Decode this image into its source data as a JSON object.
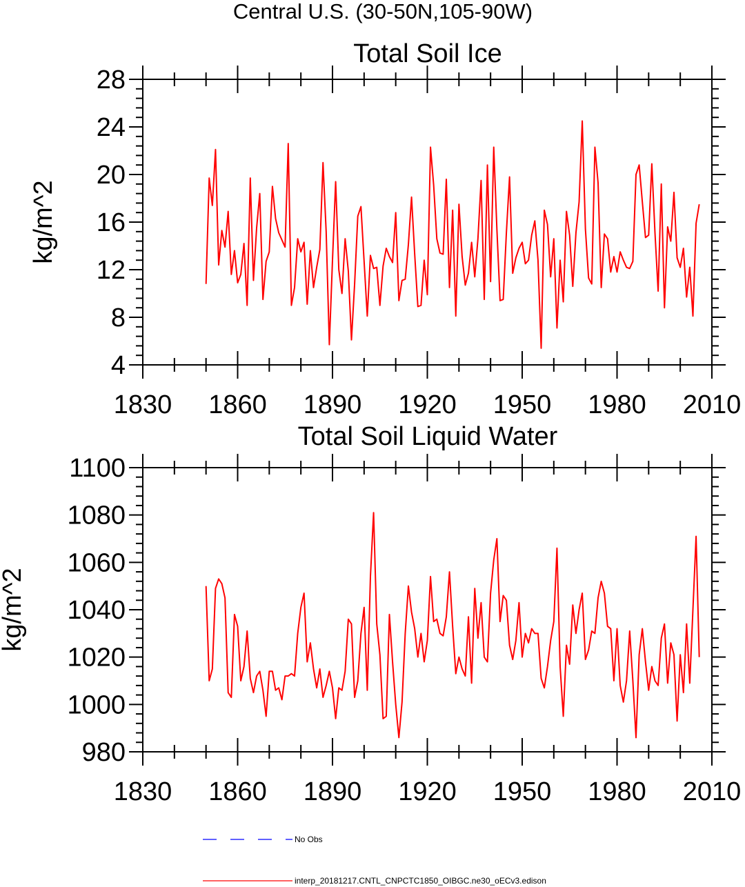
{
  "figure_title": "Central U.S. (30-50N,105-90W)",
  "chart_data": [
    {
      "type": "line",
      "title": "Total Soil Ice",
      "xlabel": "",
      "ylabel": "kg/m^2",
      "xlim": [
        1830,
        2010
      ],
      "ylim": [
        4,
        28
      ],
      "xticks": [
        1830,
        1860,
        1890,
        1920,
        1950,
        1980,
        2010
      ],
      "yticks": [
        4,
        8,
        12,
        16,
        20,
        24,
        28
      ],
      "series": [
        {
          "name": "interp_20181217.CNTL_CNPCTC1850_OIBGC.ne30_oECv3.edison",
          "color": "#ff0000",
          "x_start": 1850,
          "values": [
            10.8,
            19.7,
            17.4,
            22.1,
            12.4,
            15.3,
            13.9,
            16.9,
            11.6,
            13.6,
            10.9,
            11.6,
            14.2,
            9.0,
            19.7,
            11.1,
            15.5,
            18.4,
            9.5,
            12.7,
            13.5,
            19.0,
            16.3,
            15.1,
            14.5,
            13.9,
            22.6,
            9.0,
            10.5,
            14.6,
            13.5,
            14.3,
            9.1,
            13.6,
            10.5,
            12.2,
            13.7,
            21.0,
            15.2,
            5.7,
            12.8,
            19.4,
            12.0,
            10.0,
            14.6,
            11.9,
            6.1,
            10.8,
            16.5,
            17.3,
            12.7,
            8.1,
            13.2,
            12.1,
            12.2,
            9.0,
            12.3,
            13.8,
            13.1,
            12.6,
            16.8,
            9.4,
            11.1,
            11.2,
            14.1,
            18.1,
            13.3,
            8.9,
            9.0,
            12.8,
            9.9,
            22.3,
            19.1,
            14.6,
            13.4,
            13.3,
            19.6,
            10.5,
            17.0,
            8.1,
            17.5,
            13.1,
            10.7,
            11.7,
            14.3,
            11.4,
            14.6,
            19.5,
            9.5,
            20.8,
            11.0,
            22.3,
            15.4,
            9.4,
            9.5,
            15.1,
            19.8,
            11.7,
            13.0,
            13.8,
            14.3,
            12.5,
            12.8,
            14.9,
            16.1,
            12.8,
            5.4,
            17.0,
            15.8,
            11.4,
            14.6,
            7.1,
            12.8,
            9.3,
            16.9,
            14.9,
            10.6,
            15.1,
            17.7,
            24.5,
            15.4,
            11.3,
            10.8,
            22.3,
            19.3,
            10.5,
            15.0,
            14.6,
            11.8,
            13.1,
            11.8,
            13.5,
            12.8,
            12.2,
            12.1,
            12.7,
            20.0,
            20.8,
            17.7,
            14.7,
            14.9,
            20.9,
            15.1,
            10.2,
            19.2,
            8.8,
            15.6,
            14.4,
            18.5,
            13.0,
            12.2,
            13.8,
            9.7,
            12.2,
            8.1,
            15.9,
            17.5
          ]
        }
      ]
    },
    {
      "type": "line",
      "title": "Total Soil Liquid Water",
      "xlabel": "",
      "ylabel": "kg/m^2",
      "xlim": [
        1830,
        2010
      ],
      "ylim": [
        980,
        1100
      ],
      "xticks": [
        1830,
        1860,
        1890,
        1920,
        1950,
        1980,
        2010
      ],
      "yticks": [
        980,
        1000,
        1020,
        1040,
        1060,
        1080,
        1100
      ],
      "series": [
        {
          "name": "interp_20181217.CNTL_CNPCTC1850_OIBGC.ne30_oECv3.edison",
          "color": "#ff0000",
          "x_start": 1850,
          "values": [
            1050,
            1010,
            1015,
            1049,
            1053,
            1051,
            1045,
            1005,
            1003,
            1038,
            1033,
            1010,
            1016,
            1031,
            1011,
            1005,
            1012,
            1014,
            1006,
            995,
            1014,
            1014,
            1006,
            1007,
            1002,
            1012,
            1012,
            1013,
            1012,
            1030,
            1041,
            1047,
            1018,
            1026,
            1015,
            1007,
            1015,
            1003,
            1008,
            1014,
            1007,
            994,
            1007,
            1006,
            1014,
            1036,
            1034,
            1003,
            1010,
            1030,
            1041,
            1006,
            1054,
            1081,
            1034,
            1021,
            994,
            995,
            1038,
            1018,
            1000,
            986,
            1001,
            1030,
            1050,
            1039,
            1032,
            1020,
            1030,
            1018,
            1027,
            1054,
            1035,
            1036,
            1030,
            1029,
            1037,
            1056,
            1033,
            1013,
            1020,
            1015,
            1012,
            1037,
            1009,
            1049,
            1028,
            1043,
            1020,
            1018,
            1047,
            1061,
            1070,
            1035,
            1046,
            1044,
            1025,
            1019,
            1027,
            1043,
            1020,
            1030,
            1026,
            1032,
            1030,
            1030,
            1011,
            1007,
            1016,
            1027,
            1035,
            1066,
            1016,
            995,
            1025,
            1017,
            1042,
            1030,
            1040,
            1047,
            1019,
            1023,
            1031,
            1030,
            1045,
            1052,
            1047,
            1033,
            1032,
            1010,
            1032,
            1008,
            1001,
            1010,
            1031,
            1010,
            986,
            1021,
            1032,
            1018,
            1006,
            1016,
            1010,
            1008,
            1028,
            1034,
            1009,
            1026,
            1021,
            993,
            1021,
            1005,
            1034,
            1009,
            1040,
            1071,
            1020
          ]
        }
      ]
    }
  ],
  "legend": [
    {
      "label": "No Obs",
      "color": "#0000ff",
      "style": "dashed"
    },
    {
      "label": "interp_20181217.CNTL_CNPCTC1850_OIBGC.ne30_oECv3.edison",
      "color": "#ff0000",
      "style": "solid"
    }
  ]
}
